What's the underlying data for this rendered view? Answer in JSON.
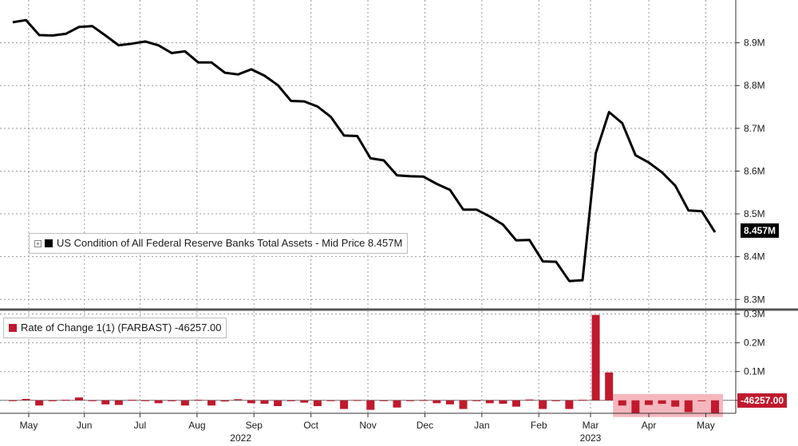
{
  "chart_data": [
    {
      "type": "line",
      "legend": "US Condition of All Federal Reserve Banks Total Assets - Mid Price 8.457M",
      "last_value_label": "8.457M",
      "ylim": [
        8.28,
        9.0
      ],
      "y_ticks": [
        {
          "v": 8.3,
          "label": "8.3M"
        },
        {
          "v": 8.4,
          "label": "8.4M"
        },
        {
          "v": 8.5,
          "label": "8.5M"
        },
        {
          "v": 8.6,
          "label": "8.6M"
        },
        {
          "v": 8.7,
          "label": "8.7M"
        },
        {
          "v": 8.8,
          "label": "8.8M"
        },
        {
          "v": 8.9,
          "label": "8.9M"
        }
      ],
      "grid": true,
      "legend_position": "bottom-left",
      "color": "#000000",
      "y": [
        8.948,
        8.953,
        8.918,
        8.917,
        8.921,
        8.937,
        8.939,
        8.917,
        8.894,
        8.898,
        8.903,
        8.894,
        8.876,
        8.88,
        8.854,
        8.854,
        8.83,
        8.826,
        8.838,
        8.823,
        8.801,
        8.764,
        8.763,
        8.751,
        8.727,
        8.683,
        8.682,
        8.63,
        8.625,
        8.59,
        8.588,
        8.587,
        8.57,
        8.556,
        8.51,
        8.51,
        8.494,
        8.475,
        8.438,
        8.439,
        8.389,
        8.388,
        8.343,
        8.345,
        8.642,
        8.738,
        8.712,
        8.637,
        8.62,
        8.597,
        8.566,
        8.508,
        8.506,
        8.457
      ]
    },
    {
      "type": "bar",
      "legend": "Rate of Change 1(1) (FARBAST) -46257.00",
      "last_value_label": "-46257.00",
      "ylim": [
        -0.045,
        0.31
      ],
      "y_ticks": [
        {
          "v": 0,
          "label": "0"
        },
        {
          "v": 0.1,
          "label": "0.1M"
        },
        {
          "v": 0.2,
          "label": "0.2M"
        },
        {
          "v": 0.3,
          "label": "0.3M"
        }
      ],
      "grid": true,
      "legend_position": "top-left",
      "color": "#c0192e",
      "highlight_color": "#f4b7bd",
      "y": [
        -0.002,
        0.005,
        -0.018,
        -0.003,
        0.002,
        0.01,
        -0.002,
        -0.014,
        -0.016,
        0.002,
        -0.002,
        -0.01,
        -0.003,
        -0.018,
        0.002,
        -0.018,
        -0.004,
        0.004,
        -0.01,
        -0.012,
        -0.02,
        -0.003,
        -0.008,
        -0.02,
        -0.002,
        -0.03,
        0.001,
        -0.033,
        -0.002,
        -0.025,
        -0.002,
        0.001,
        -0.01,
        -0.014,
        -0.03,
        -0.001,
        -0.01,
        -0.012,
        -0.022,
        0.003,
        -0.03,
        -0.001,
        -0.03,
        0.002,
        0.297,
        0.097,
        -0.018,
        -0.046,
        -0.016,
        -0.012,
        -0.022,
        -0.041,
        -0.003,
        -0.046
      ]
    }
  ],
  "x_axis": {
    "month_labels": [
      {
        "label": "May",
        "pos": 0.0
      },
      {
        "label": "Jun",
        "pos": 4.2
      },
      {
        "label": "Jul",
        "pos": 8.4
      },
      {
        "label": "Aug",
        "pos": 12.7
      },
      {
        "label": "Sep",
        "pos": 17.0
      },
      {
        "label": "Oct",
        "pos": 21.3
      },
      {
        "label": "Nov",
        "pos": 25.6
      },
      {
        "label": "Dec",
        "pos": 29.9
      },
      {
        "label": "Jan",
        "pos": 34.2
      },
      {
        "label": "Feb",
        "pos": 38.5
      },
      {
        "label": "Mar",
        "pos": 42.4
      },
      {
        "label": "Apr",
        "pos": 46.8
      },
      {
        "label": "May",
        "pos": 51.1
      }
    ],
    "year_labels": [
      {
        "label": "2022",
        "pos": 16.0
      },
      {
        "label": "2023",
        "pos": 42.4
      }
    ]
  }
}
